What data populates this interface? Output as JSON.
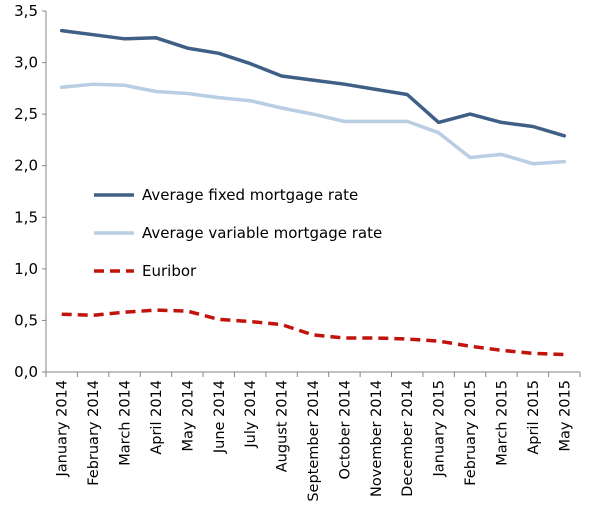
{
  "chart_data": {
    "type": "line",
    "title": "",
    "xlabel": "",
    "ylabel": "",
    "ylim": [
      0,
      3.5
    ],
    "yticks": [
      "0,0",
      "0,5",
      "1,0",
      "1,5",
      "2,0",
      "2,5",
      "3,0",
      "3,5"
    ],
    "grid": false,
    "legend_position": "center-left",
    "categories": [
      "January 2014",
      "February 2014",
      "March 2014",
      "April 2014",
      "May 2014",
      "June 2014",
      "July 2014",
      "August 2014",
      "September 2014",
      "October 2014",
      "November 2014",
      "December 2014",
      "January 2015",
      "February 2015",
      "March 2015",
      "April 2015",
      "May 2015"
    ],
    "series": [
      {
        "name": "Average fixed mortgage rate",
        "color": "#3f5f86",
        "style": "solid",
        "values": [
          3.31,
          3.27,
          3.23,
          3.24,
          3.14,
          3.09,
          2.99,
          2.87,
          2.83,
          2.79,
          2.74,
          2.69,
          2.42,
          2.5,
          2.42,
          2.38,
          2.29
        ]
      },
      {
        "name": "Average variable mortgage rate",
        "color": "#b9cde3",
        "style": "solid",
        "values": [
          2.76,
          2.79,
          2.78,
          2.72,
          2.7,
          2.66,
          2.63,
          2.56,
          2.5,
          2.43,
          2.43,
          2.43,
          2.32,
          2.08,
          2.11,
          2.02,
          2.04
        ]
      },
      {
        "name": "Euribor",
        "color": "#c0130c",
        "style": "dashed",
        "values": [
          0.56,
          0.55,
          0.58,
          0.6,
          0.59,
          0.51,
          0.49,
          0.46,
          0.36,
          0.33,
          0.33,
          0.32,
          0.3,
          0.25,
          0.21,
          0.18,
          0.17
        ]
      }
    ]
  }
}
